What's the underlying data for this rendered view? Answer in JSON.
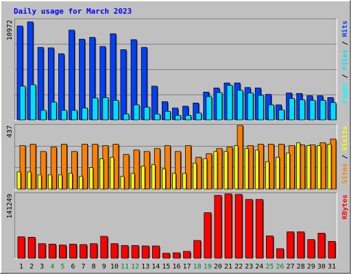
{
  "title": "Daily usage for March 2023",
  "colors": {
    "background": "#c0c0c0",
    "title": "#0000ff",
    "weekday_label": "#000000",
    "weekend_label": "#007f3f",
    "hits": "#0040ff",
    "files": "#00e0ff",
    "pages": "#00ffff",
    "sites": "#ff8000",
    "visits": "#ffff00",
    "kbytes": "#ff0000"
  },
  "chart_data": [
    {
      "type": "bar",
      "panel": "hits-files-pages",
      "ylabel": "Pages / Files / Hits",
      "ylabel_parts": [
        "Pages",
        "/",
        "Files",
        "/",
        "Hits"
      ],
      "y_tick_label": "10972",
      "ylim": [
        0,
        10972
      ],
      "categories": [
        "1",
        "2",
        "3",
        "4",
        "5",
        "6",
        "7",
        "8",
        "9",
        "10",
        "11",
        "12",
        "13",
        "14",
        "15",
        "16",
        "17",
        "18",
        "19",
        "20",
        "21",
        "22",
        "23",
        "24",
        "25",
        "26",
        "27",
        "28",
        "29",
        "30",
        "31"
      ],
      "series": [
        {
          "name": "Hits",
          "values": [
            10300,
            10750,
            7950,
            7900,
            7250,
            9850,
            8850,
            9050,
            8050,
            9450,
            7700,
            8800,
            7950,
            3700,
            2000,
            1300,
            1500,
            1850,
            3050,
            3500,
            4050,
            4050,
            3550,
            3500,
            2800,
            1650,
            2950,
            2900,
            2650,
            2650,
            2450
          ]
        },
        {
          "name": "Files",
          "values": [
            3700,
            3850,
            1050,
            1950,
            1050,
            1050,
            1300,
            2400,
            2450,
            2150,
            650,
            1650,
            1400,
            650,
            950,
            500,
            500,
            750,
            2550,
            3000,
            3800,
            3250,
            2950,
            2700,
            1650,
            1100,
            2350,
            2200,
            2150,
            2150,
            1900
          ]
        },
        {
          "name": "Pages",
          "values": [
            0,
            0,
            0,
            0,
            0,
            0,
            0,
            0,
            0,
            0,
            0,
            0,
            0,
            0,
            0,
            0,
            0,
            0,
            0,
            0,
            0,
            0,
            0,
            0,
            0,
            0,
            0,
            0,
            0,
            0,
            0
          ]
        }
      ]
    },
    {
      "type": "bar",
      "panel": "sites-visits",
      "ylabel": "Sites / Visits",
      "ylabel_parts": [
        "Sites",
        "/",
        "Visits"
      ],
      "y_tick_label": "437",
      "ylim": [
        0,
        437
      ],
      "categories": [
        "1",
        "2",
        "3",
        "4",
        "5",
        "6",
        "7",
        "8",
        "9",
        "10",
        "11",
        "12",
        "13",
        "14",
        "15",
        "16",
        "17",
        "18",
        "19",
        "20",
        "21",
        "22",
        "23",
        "24",
        "25",
        "26",
        "27",
        "28",
        "29",
        "30",
        "31"
      ],
      "series": [
        {
          "name": "Sites",
          "values": [
            298,
            308,
            258,
            288,
            308,
            258,
            308,
            308,
            298,
            308,
            238,
            268,
            258,
            278,
            298,
            258,
            298,
            218,
            243,
            278,
            288,
            437,
            298,
            308,
            308,
            308,
            298,
            303,
            303,
            318,
            343
          ]
        },
        {
          "name": "Visits",
          "values": [
            118,
            118,
            98,
            98,
            98,
            108,
            88,
            148,
            208,
            218,
            88,
            108,
            158,
            168,
            138,
            108,
            108,
            178,
            208,
            258,
            258,
            298,
            278,
            268,
            188,
            218,
            248,
            318,
            298,
            298,
            308
          ]
        }
      ]
    },
    {
      "type": "bar",
      "panel": "kbytes",
      "ylabel": "KBytes",
      "ylabel_parts": [
        "KBytes"
      ],
      "y_tick_label": "141249",
      "ylim": [
        0,
        141249
      ],
      "categories": [
        "1",
        "2",
        "3",
        "4",
        "5",
        "6",
        "7",
        "8",
        "9",
        "10",
        "11",
        "12",
        "13",
        "14",
        "15",
        "16",
        "17",
        "18",
        "19",
        "20",
        "21",
        "22",
        "23",
        "24",
        "25",
        "26",
        "27",
        "28",
        "29",
        "30",
        "31"
      ],
      "series": [
        {
          "name": "KBytes",
          "values": [
            47000,
            46000,
            32000,
            31000,
            29000,
            31000,
            30000,
            32000,
            48000,
            32000,
            28000,
            28000,
            27000,
            27000,
            11000,
            12000,
            15000,
            39000,
            100000,
            138000,
            141249,
            140000,
            129000,
            129000,
            49000,
            21000,
            58000,
            58000,
            41000,
            55000,
            37000
          ]
        }
      ]
    }
  ],
  "x_labels": [
    "1",
    "2",
    "3",
    "4",
    "5",
    "6",
    "7",
    "8",
    "9",
    "10",
    "11",
    "12",
    "13",
    "14",
    "15",
    "16",
    "17",
    "18",
    "19",
    "20",
    "21",
    "22",
    "23",
    "24",
    "25",
    "26",
    "27",
    "28",
    "29",
    "30",
    "31"
  ],
  "weekend_days": [
    4,
    5,
    11,
    12,
    18,
    19,
    25,
    26
  ]
}
